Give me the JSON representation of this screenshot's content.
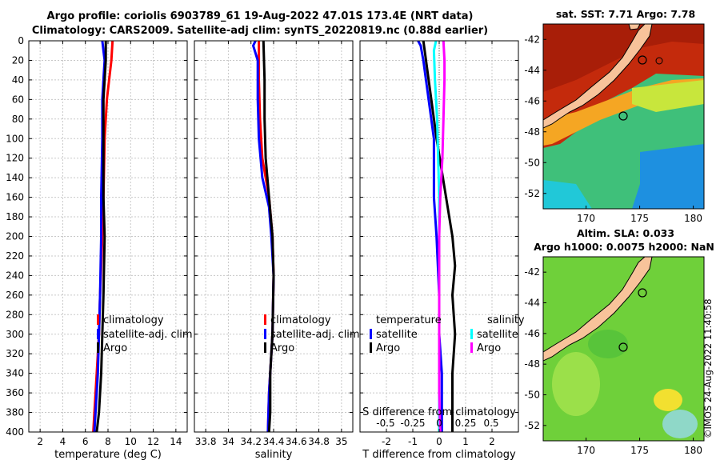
{
  "header": {
    "title_line1": "Argo profile: coriolis 6903789_61 19-Aug-2022 47.01S 173.4E (NRT data)",
    "title_line2": "Climatology: CARS2009. Satellite-adj clim: synTS_20220819.nc (0.88d earlier)"
  },
  "maps": {
    "sst_title": "sat. SST: 7.71 Argo: 7.78",
    "sla_title_1": "Altim. SLA: 0.033",
    "sla_title_2": "Argo h1000: 0.0075 h2000: NaN",
    "lon_ticks": [
      170,
      175,
      180
    ],
    "lat_ticks": [
      -42,
      -44,
      -46,
      -48,
      -50,
      -52
    ],
    "lon_range": [
      166,
      181
    ],
    "lat_range": [
      -41,
      -53
    ],
    "colors": {
      "land": "#F8C39A",
      "warm": "#C42A0C",
      "mid": "#7BD33C",
      "cool": "#31B5E0"
    }
  },
  "credit": "©IMOS 24-Aug-2022 11:40:58",
  "chart_data": [
    {
      "type": "line",
      "xlabel": "temperature (deg C)",
      "ylabel": "",
      "xlim": [
        1,
        15
      ],
      "ylim": [
        400,
        0
      ],
      "xticks": [
        2,
        4,
        6,
        8,
        10,
        12,
        14
      ],
      "yticks": [
        0,
        20,
        40,
        60,
        80,
        100,
        120,
        140,
        160,
        180,
        200,
        220,
        240,
        260,
        280,
        300,
        320,
        340,
        360,
        380,
        400
      ],
      "grid": true,
      "legend": {
        "position": "lower-right",
        "entries": [
          "climatology",
          "satellite-adj. clim",
          "Argo"
        ]
      },
      "series": [
        {
          "name": "climatology",
          "color": "#ff0000",
          "depth": [
            0,
            20,
            40,
            60,
            100,
            160,
            200,
            260,
            300,
            340,
            380,
            400
          ],
          "values": [
            8.4,
            8.3,
            8.1,
            7.9,
            7.7,
            7.6,
            7.5,
            7.3,
            7.2,
            7.0,
            6.8,
            6.7
          ]
        },
        {
          "name": "satellite-adj. clim",
          "color": "#0000ff",
          "depth": [
            0,
            10,
            20,
            40,
            60,
            100,
            160,
            200,
            260,
            300,
            340,
            380,
            400
          ],
          "values": [
            7.5,
            7.6,
            7.7,
            7.6,
            7.5,
            7.5,
            7.4,
            7.4,
            7.3,
            7.2,
            7.1,
            6.9,
            6.8
          ]
        },
        {
          "name": "Argo",
          "color": "#000000",
          "depth": [
            0,
            20,
            40,
            60,
            100,
            160,
            200,
            260,
            300,
            340,
            380,
            400
          ],
          "values": [
            7.8,
            7.8,
            7.7,
            7.6,
            7.6,
            7.6,
            7.7,
            7.6,
            7.5,
            7.4,
            7.2,
            7.0
          ]
        }
      ]
    },
    {
      "type": "line",
      "xlabel": "salinity",
      "ylabel": "",
      "xlim": [
        33.7,
        35.1
      ],
      "ylim": [
        400,
        0
      ],
      "xticks": [
        33.8,
        34,
        34.2,
        34.4,
        34.6,
        34.8,
        35
      ],
      "xtick_labels": [
        "33.8",
        "34",
        "34.2",
        "34.4",
        "34.6",
        "34.8",
        "35"
      ],
      "grid": true,
      "legend": {
        "position": "lower-right",
        "entries": [
          "climatology",
          "satellite-adj. clim",
          "Argo"
        ]
      },
      "series": [
        {
          "name": "climatology",
          "color": "#ff0000",
          "depth": [
            0,
            40,
            80,
            120,
            160,
            200,
            240,
            300,
            360,
            400
          ],
          "values": [
            34.27,
            34.27,
            34.28,
            34.3,
            34.36,
            34.39,
            34.4,
            34.39,
            34.36,
            34.35
          ]
        },
        {
          "name": "satellite-adj. clim",
          "color": "#0000ff",
          "depth": [
            0,
            5,
            20,
            60,
            100,
            140,
            170,
            200,
            240,
            300,
            360,
            400
          ],
          "values": [
            34.24,
            34.22,
            34.26,
            34.26,
            34.27,
            34.3,
            34.36,
            34.38,
            34.4,
            34.39,
            34.36,
            34.35
          ]
        },
        {
          "name": "Argo",
          "color": "#000000",
          "depth": [
            0,
            40,
            80,
            120,
            160,
            200,
            240,
            300,
            340,
            380,
            400
          ],
          "values": [
            34.31,
            34.32,
            34.32,
            34.33,
            34.36,
            34.39,
            34.4,
            34.39,
            34.37,
            34.37,
            34.36
          ]
        }
      ]
    },
    {
      "type": "line",
      "xlabel": "T difference from climatology",
      "top_label": "S difference from climatology",
      "ylabel": "",
      "xlim": [
        -3,
        3
      ],
      "ylim": [
        400,
        0
      ],
      "xticks": [
        -2,
        -1,
        0,
        1,
        2
      ],
      "top_ticks": [
        -0.5,
        -0.25,
        0,
        0.25,
        0.5
      ],
      "top_tick_labels": [
        "-0.5",
        "-0.25",
        "0",
        "0.25",
        "0.5"
      ],
      "grid": true,
      "legend": {
        "temperature": {
          "heading": "temperature",
          "entries": [
            "satellite",
            "Argo"
          ]
        },
        "salinity": {
          "heading": "salinity",
          "entries": [
            "satellite",
            "Argo"
          ]
        }
      },
      "series": [
        {
          "name": "T satellite",
          "color": "#0000ff",
          "depth": [
            0,
            5,
            20,
            40,
            60,
            100,
            160,
            200,
            260,
            300,
            340,
            380,
            400
          ],
          "values": [
            -0.8,
            -0.7,
            -0.6,
            -0.5,
            -0.4,
            -0.2,
            -0.2,
            -0.1,
            0.0,
            0.0,
            0.1,
            0.1,
            0.1
          ]
        },
        {
          "name": "T Argo",
          "color": "#000000",
          "depth": [
            0,
            20,
            40,
            60,
            100,
            150,
            200,
            230,
            260,
            300,
            340,
            380,
            400
          ],
          "values": [
            -0.6,
            -0.5,
            -0.4,
            -0.3,
            -0.1,
            0.2,
            0.5,
            0.6,
            0.5,
            0.6,
            0.5,
            0.5,
            0.5
          ]
        },
        {
          "name": "S satellite",
          "color": "#00ffff",
          "depth": [
            0,
            10,
            40,
            80,
            120,
            160,
            200,
            240,
            300,
            360,
            400
          ],
          "values": [
            -0.03,
            -0.05,
            -0.04,
            -0.02,
            -0.01,
            0.0,
            0.0,
            0.0,
            0.0,
            0.0,
            0.0
          ]
        },
        {
          "name": "S Argo",
          "color": "#ff00ff",
          "depth": [
            0,
            20,
            40,
            80,
            120,
            160,
            200,
            240,
            300,
            360,
            400
          ],
          "values": [
            0.04,
            0.05,
            0.05,
            0.04,
            0.03,
            0.01,
            0.0,
            0.0,
            0.0,
            0.0,
            0.01
          ]
        }
      ]
    }
  ]
}
